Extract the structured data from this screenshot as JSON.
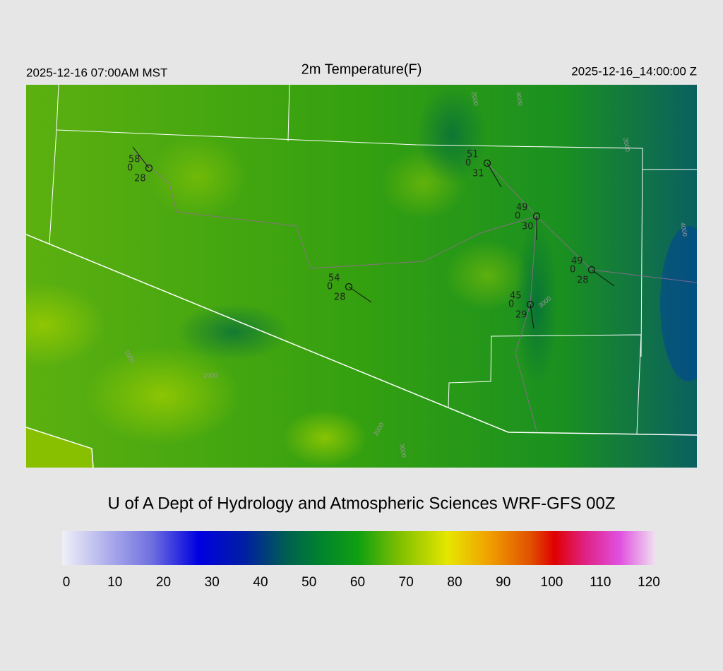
{
  "header": {
    "left": "2025-12-16 07:00AM MST",
    "title": "2m Temperature(F)",
    "right": "2025-12-16_14:00:00 Z"
  },
  "stations": [
    {
      "temp": "58",
      "wind": "0",
      "dew": "28"
    },
    {
      "temp": "51",
      "wind": "0",
      "dew": "31"
    },
    {
      "temp": "49",
      "wind": "0",
      "dew": "30"
    },
    {
      "temp": "49",
      "wind": "0",
      "dew": "28"
    },
    {
      "temp": "54",
      "wind": "0",
      "dew": "28"
    },
    {
      "temp": "45",
      "wind": "0",
      "dew": "29"
    }
  ],
  "contour_labels": [
    "2000",
    "4000",
    "3000",
    "4000",
    "3000",
    "2000",
    "1000",
    "3000",
    "3000"
  ],
  "credit": "U of A Dept of Hydrology and Atmospheric Sciences WRF-GFS 00Z",
  "colorbar": {
    "lim": [
      0,
      120
    ],
    "ticks": [
      0,
      10,
      20,
      30,
      40,
      50,
      60,
      70,
      80,
      90,
      100,
      110,
      120
    ]
  }
}
